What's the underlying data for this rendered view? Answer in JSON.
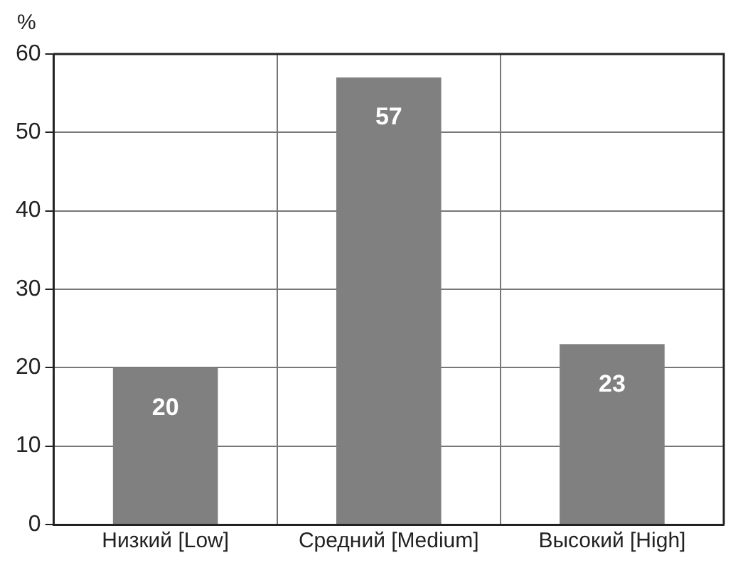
{
  "chart_data": {
    "type": "bar",
    "ylabel": "%",
    "categories": [
      "Низкий [Low]",
      "Средний [Medium]",
      "Высокий [High]"
    ],
    "values": [
      20,
      57,
      23
    ],
    "color": "#808080",
    "ylim": [
      0,
      60
    ],
    "yticks": [
      0,
      10,
      20,
      30,
      40,
      50,
      60
    ],
    "grid": true,
    "data_labels": true
  }
}
